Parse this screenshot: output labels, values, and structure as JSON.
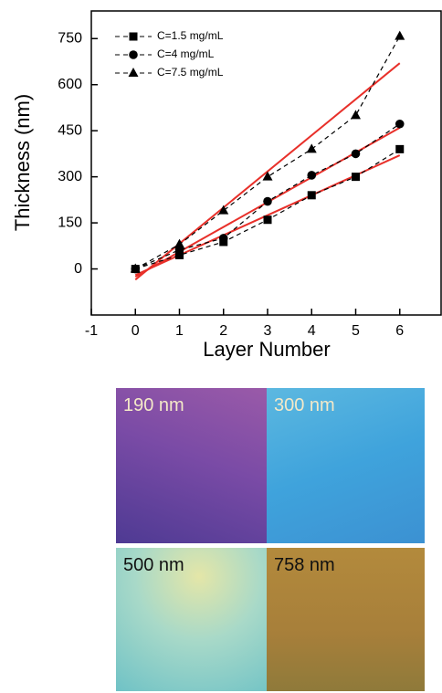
{
  "chart_data": {
    "type": "scatter",
    "x_label": "Layer Number",
    "y_label": "Thickness (nm)",
    "x": [
      0,
      1,
      2,
      3,
      4,
      5,
      6
    ],
    "xlim": [
      -1,
      7
    ],
    "xticks": [
      -1,
      0,
      1,
      2,
      3,
      4,
      5,
      6
    ],
    "ylim": [
      -150,
      840
    ],
    "yticks": [
      0,
      150,
      300,
      450,
      600,
      750
    ],
    "legend": "top-left",
    "series": [
      {
        "name": "C=1.5 mg/mL",
        "color": "#000000",
        "marker": "square",
        "values": [
          0,
          45,
          88,
          160,
          240,
          300,
          390
        ]
      },
      {
        "name": "C=4 mg/mL",
        "color": "#000000",
        "marker": "circle",
        "values": [
          0,
          62,
          100,
          220,
          305,
          375,
          472
        ]
      },
      {
        "name": "C=7.5 mg/mL",
        "color": "#000000",
        "marker": "triangle",
        "values": [
          0,
          80,
          190,
          300,
          390,
          500,
          758
        ]
      }
    ],
    "fits": [
      {
        "color": "#e8302a",
        "x": [
          0,
          6
        ],
        "values": [
          -20,
          370
        ]
      },
      {
        "color": "#e8302a",
        "x": [
          0,
          6
        ],
        "values": [
          -25,
          460
        ]
      },
      {
        "color": "#e8302a",
        "x": [
          0,
          6
        ],
        "values": [
          -35,
          670
        ]
      }
    ]
  },
  "photos": [
    {
      "label": "190 nm"
    },
    {
      "label": "300 nm"
    },
    {
      "label": "500 nm"
    },
    {
      "label": "758 nm"
    }
  ]
}
